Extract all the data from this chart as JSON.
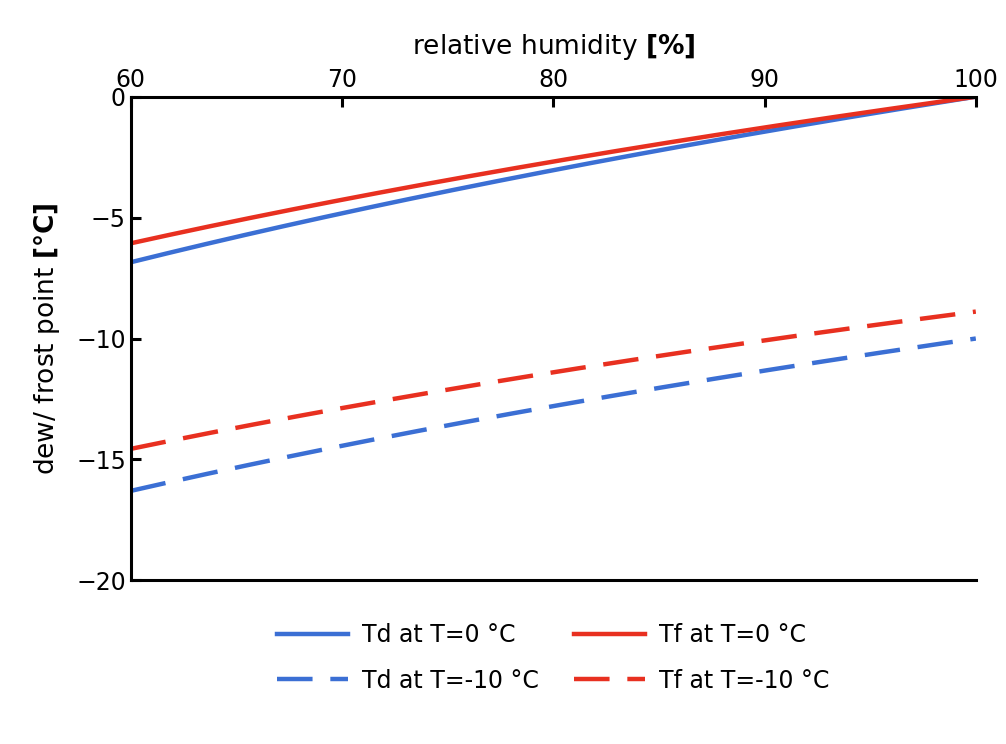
{
  "title_top": "relative humidity [%]",
  "ylabel": "dew/ frost point [°C]",
  "xlim": [
    60,
    100
  ],
  "ylim": [
    -20,
    0
  ],
  "xticks": [
    60,
    70,
    80,
    90,
    100
  ],
  "yticks": [
    0,
    -5,
    -10,
    -15,
    -20
  ],
  "T0": 0,
  "T1": -10,
  "rh_min": 60,
  "rh_max": 100,
  "color_blue": "#3B6FD4",
  "color_red": "#E83020",
  "legend_row1": [
    "Td at T=0 °C",
    "Td at T=-10 °C"
  ],
  "legend_row2": [
    "Tf at T=0 °C",
    "Tf at T=-10 °C"
  ],
  "linewidth": 3.2,
  "fontsize_title": 19,
  "fontsize_label": 19,
  "fontsize_tick": 17,
  "fontsize_legend": 17,
  "dash_pattern": [
    8,
    4
  ],
  "spine_linewidth": 2.2
}
